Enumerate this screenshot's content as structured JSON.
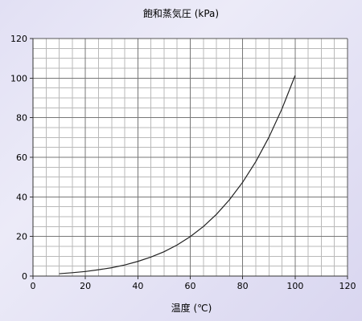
{
  "chart_data": {
    "type": "line",
    "title": "飽和蒸気圧 (kPa)",
    "xlabel": "温度 (℃)",
    "ylabel": "",
    "xlim": [
      0,
      120
    ],
    "ylim": [
      0,
      120
    ],
    "x_major_ticks": [
      0,
      20,
      40,
      60,
      80,
      100,
      120
    ],
    "y_major_ticks": [
      0,
      20,
      40,
      60,
      80,
      100,
      120
    ],
    "x_minor_step": 5,
    "y_minor_step": 5,
    "grid": true,
    "legend": "none",
    "line_color": "#222222",
    "series": [
      {
        "x": [
          10,
          15,
          20,
          25,
          30,
          35,
          40,
          45,
          50,
          55,
          60,
          65,
          70,
          75,
          80,
          85,
          90,
          95,
          100
        ],
        "values": [
          1.2,
          1.7,
          2.3,
          3.2,
          4.2,
          5.6,
          7.4,
          9.6,
          12.3,
          15.7,
          19.9,
          25.0,
          31.2,
          38.6,
          47.4,
          57.8,
          70.1,
          84.5,
          101.3
        ]
      }
    ]
  }
}
